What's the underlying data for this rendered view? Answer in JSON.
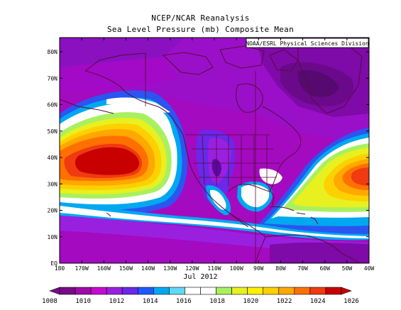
{
  "header": {
    "title": "NCEP/NCAR Reanalysis",
    "subtitle": "Sea Level Pressure (mb) Composite Mean"
  },
  "map": {
    "credit": "NOAA/ESRL Physical Sciences Division",
    "lat_labels": [
      "80N",
      "70N",
      "60N",
      "50N",
      "40N",
      "30N",
      "20N",
      "10N",
      "EQ"
    ],
    "lon_labels": [
      "180",
      "170W",
      "160W",
      "150W",
      "140W",
      "130W",
      "120W",
      "110W",
      "100W",
      "90W",
      "80W",
      "70W",
      "60W",
      "50W",
      "40W"
    ],
    "lat_range": [
      0,
      85
    ],
    "lon_range": [
      -180,
      -40
    ],
    "variable": "Sea Level Pressure",
    "units": "mb"
  },
  "period": "Jul 2012",
  "colorbar": {
    "labels": [
      "1008",
      "1010",
      "1012",
      "1014",
      "1016",
      "1018",
      "1020",
      "1022",
      "1024",
      "1026"
    ],
    "colors": [
      "#7a0a8a",
      "#a00aa8",
      "#c80ad0",
      "#9a20e0",
      "#6a28e8",
      "#1e5aff",
      "#00a8f0",
      "#60d8f8",
      "#ffffff",
      "#ffffff",
      "#a8f060",
      "#e8f020",
      "#fff000",
      "#ffd000",
      "#ffa800",
      "#ff7000",
      "#f03a10",
      "#c80000"
    ]
  },
  "legend_colors": {
    "low": "#7a0a8a",
    "high": "#c80000",
    "coast": "#5a0a3a"
  }
}
